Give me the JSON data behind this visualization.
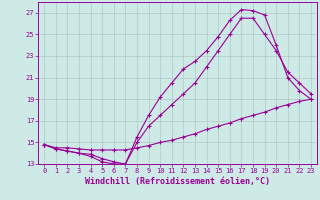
{
  "xlabel": "Windchill (Refroidissement éolien,°C)",
  "bg_color": "#ceeae6",
  "line_color": "#990099",
  "grid_color": "#b0c8c4",
  "xlim": [
    -0.5,
    23.5
  ],
  "ylim": [
    13,
    28
  ],
  "xticks": [
    0,
    1,
    2,
    3,
    4,
    5,
    6,
    7,
    8,
    9,
    10,
    11,
    12,
    13,
    14,
    15,
    16,
    17,
    18,
    19,
    20,
    21,
    22,
    23
  ],
  "yticks": [
    13,
    15,
    17,
    19,
    21,
    23,
    25,
    27
  ],
  "line1_x": [
    0,
    1,
    2,
    3,
    4,
    5,
    6,
    7,
    8,
    9,
    10,
    11,
    12,
    13,
    14,
    15,
    16,
    17,
    18,
    19,
    20,
    21,
    22,
    23
  ],
  "line1_y": [
    14.8,
    14.4,
    14.2,
    14.0,
    13.7,
    13.2,
    13.0,
    13.0,
    15.5,
    17.5,
    19.2,
    20.5,
    21.8,
    22.5,
    23.5,
    24.8,
    26.3,
    27.3,
    27.2,
    26.8,
    24.0,
    21.0,
    19.8,
    19.0
  ],
  "line2_x": [
    0,
    1,
    2,
    3,
    4,
    5,
    6,
    7,
    8,
    9,
    10,
    11,
    12,
    13,
    14,
    15,
    16,
    17,
    18,
    19,
    20,
    21,
    22,
    23
  ],
  "line2_y": [
    14.8,
    14.4,
    14.2,
    14.0,
    13.9,
    13.5,
    13.2,
    13.0,
    15.0,
    16.5,
    17.5,
    18.5,
    19.5,
    20.5,
    22.0,
    23.5,
    25.0,
    26.5,
    26.5,
    25.0,
    23.5,
    21.5,
    20.5,
    19.5
  ],
  "line3_x": [
    0,
    1,
    2,
    3,
    4,
    5,
    6,
    7,
    8,
    9,
    10,
    11,
    12,
    13,
    14,
    15,
    16,
    17,
    18,
    19,
    20,
    21,
    22,
    23
  ],
  "line3_y": [
    14.8,
    14.5,
    14.5,
    14.4,
    14.3,
    14.3,
    14.3,
    14.3,
    14.5,
    14.7,
    15.0,
    15.2,
    15.5,
    15.8,
    16.2,
    16.5,
    16.8,
    17.2,
    17.5,
    17.8,
    18.2,
    18.5,
    18.8,
    19.0
  ],
  "font_family": "monospace",
  "tick_fontsize": 5.0,
  "xlabel_fontsize": 6.0
}
